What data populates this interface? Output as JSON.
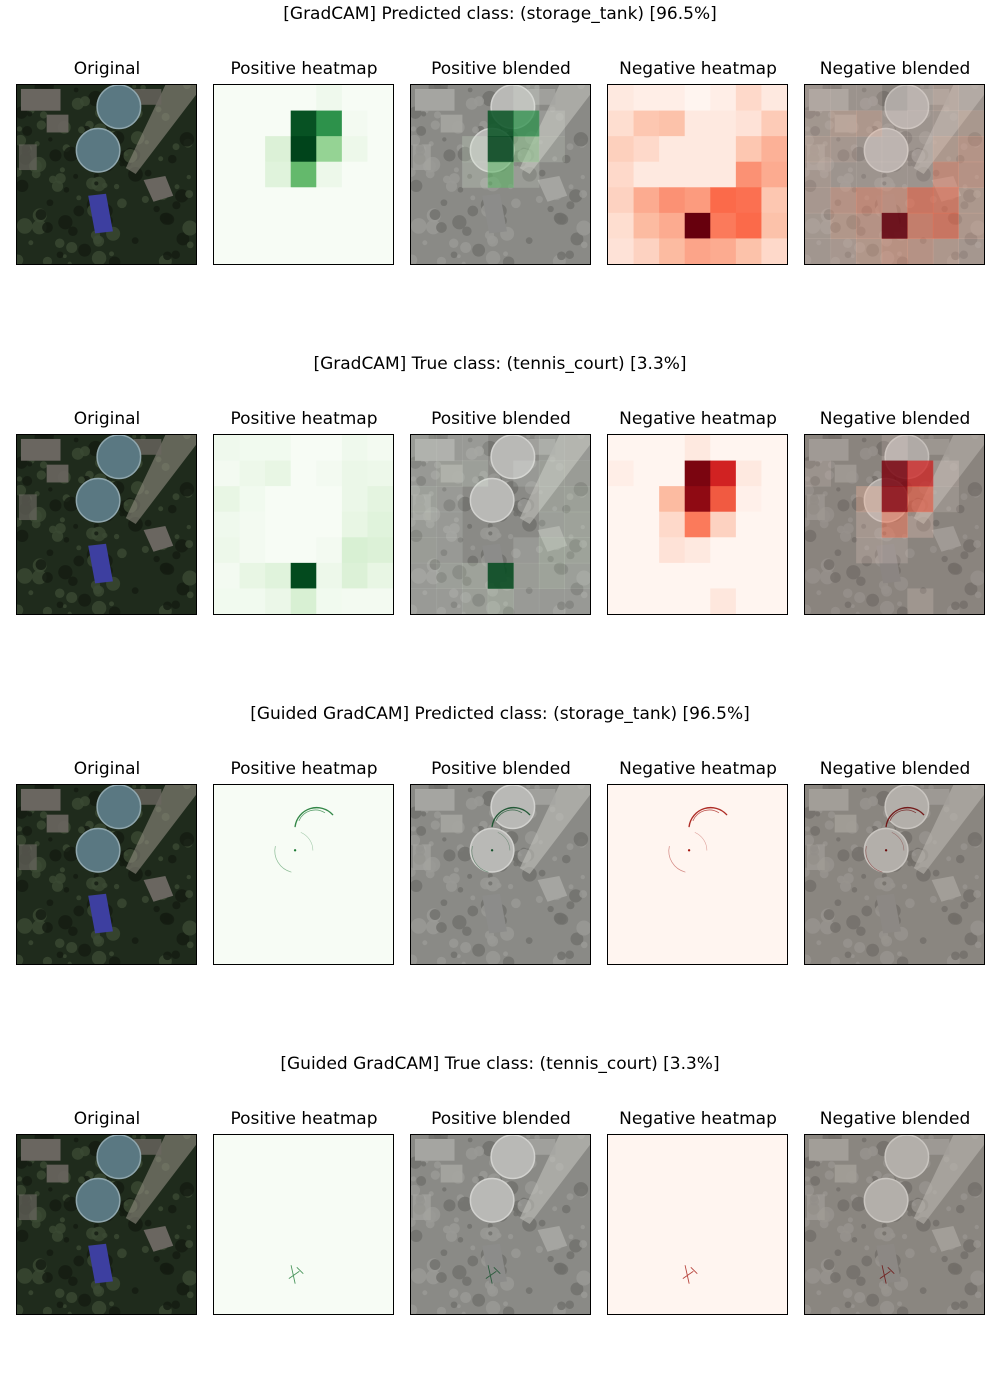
{
  "rows": [
    {
      "title": "[GradCAM] Predicted class: (storage_tank) [96.5%]",
      "method": "gradcam",
      "class": "storage_tank",
      "confidence": "96.5%",
      "pos_grid": [
        [
          0,
          0,
          0,
          0,
          0.04,
          0,
          0
        ],
        [
          0,
          0,
          0,
          0.95,
          0.72,
          0.02,
          0
        ],
        [
          0,
          0,
          0.14,
          1.0,
          0.4,
          0.05,
          0
        ],
        [
          0,
          0,
          0.12,
          0.55,
          0.05,
          0,
          0
        ],
        [
          0,
          0,
          0,
          0,
          0,
          0,
          0
        ],
        [
          0,
          0,
          0,
          0,
          0,
          0,
          0
        ],
        [
          0,
          0,
          0,
          0,
          0,
          0,
          0
        ]
      ],
      "neg_grid": [
        [
          0.05,
          0.03,
          0.03,
          0,
          0.03,
          0.12,
          0.05
        ],
        [
          0.1,
          0.2,
          0.22,
          0.05,
          0.05,
          0.08,
          0.18
        ],
        [
          0.16,
          0.12,
          0.05,
          0.05,
          0.05,
          0.2,
          0.28
        ],
        [
          0.12,
          0.05,
          0.05,
          0.05,
          0.05,
          0.38,
          0.3
        ],
        [
          0.15,
          0.3,
          0.38,
          0.35,
          0.5,
          0.48,
          0.2
        ],
        [
          0.1,
          0.25,
          0.3,
          1.0,
          0.45,
          0.5,
          0.22
        ],
        [
          0.08,
          0.15,
          0.25,
          0.32,
          0.3,
          0.22,
          0.12
        ]
      ]
    },
    {
      "title": "[GradCAM] True class: (tennis_court) [3.3%]",
      "method": "gradcam",
      "class": "tennis_court",
      "confidence": "3.3%",
      "pos_grid": [
        [
          0.04,
          0.03,
          0.03,
          0,
          0,
          0.04,
          0.02
        ],
        [
          0.02,
          0.05,
          0.08,
          0,
          0.02,
          0.06,
          0.05
        ],
        [
          0.08,
          0.03,
          0,
          0,
          0,
          0.06,
          0.1
        ],
        [
          0.04,
          0.02,
          0,
          0,
          0,
          0.08,
          0.12
        ],
        [
          0.05,
          0.02,
          0,
          0,
          0.02,
          0.16,
          0.14
        ],
        [
          0.02,
          0.08,
          0.12,
          0.98,
          0.05,
          0.14,
          0.08
        ],
        [
          0.03,
          0.03,
          0.06,
          0.16,
          0.03,
          0.02,
          0.02
        ]
      ],
      "neg_grid": [
        [
          0,
          0,
          0,
          0.05,
          0,
          0,
          0
        ],
        [
          0.03,
          0,
          0,
          0.95,
          0.72,
          0.05,
          0
        ],
        [
          0,
          0,
          0.25,
          0.9,
          0.55,
          0.02,
          0
        ],
        [
          0,
          0,
          0.12,
          0.45,
          0.15,
          0,
          0
        ],
        [
          0,
          0,
          0.08,
          0.05,
          0,
          0,
          0
        ],
        [
          0,
          0,
          0,
          0,
          0,
          0,
          0
        ],
        [
          0,
          0,
          0,
          0,
          0.06,
          0,
          0
        ]
      ]
    },
    {
      "title": "[Guided GradCAM] Predicted class: (storage_tank) [96.5%]",
      "method": "guided",
      "class": "storage_tank",
      "confidence": "96.5%",
      "focus": "tanks"
    },
    {
      "title": "[Guided GradCAM] True class: (tennis_court) [3.3%]",
      "method": "guided",
      "class": "tennis_court",
      "confidence": "3.3%",
      "focus": "court"
    }
  ],
  "panel_titles": [
    "Original",
    "Positive heatmap",
    "Positive blended",
    "Negative heatmap",
    "Negative blended"
  ],
  "colors": {
    "positive_base": "#f7fcf5",
    "positive_peak": "#00441b",
    "negative_base": "#fff5f0",
    "negative_peak": "#67000d",
    "tank": "#5a7882",
    "court": "#3d3fa0",
    "foliage": "#1f2b1c"
  }
}
